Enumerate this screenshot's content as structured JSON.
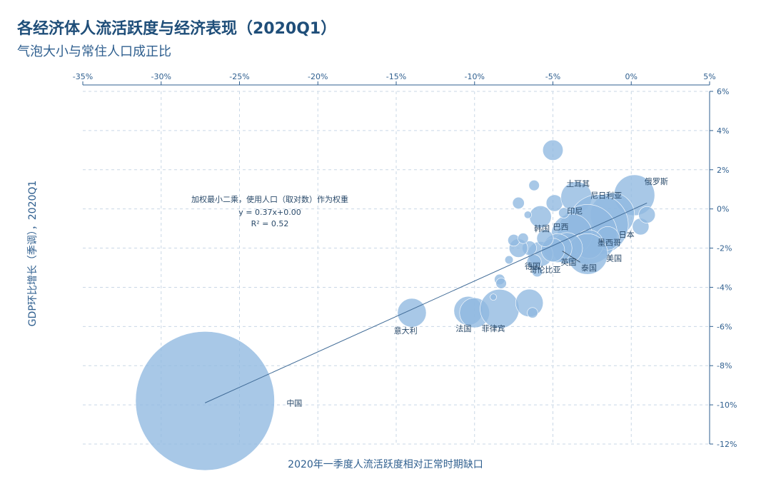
{
  "title": "各经济体人流活跃度与经济表现（2020Q1）",
  "subtitle": "气泡大小与常住人口成正比",
  "chart_data": {
    "type": "scatter",
    "xlabel": "2020年一季度人流活跃度相对正常时期缺口",
    "ylabel": "GDP环比增长（季调），2020Q1",
    "x_ticks": [
      "-35%",
      "-30%",
      "-25%",
      "-20%",
      "-15%",
      "-10%",
      "-5%",
      "0%",
      "5%"
    ],
    "y_ticks": [
      "6%",
      "4%",
      "2%",
      "0%",
      "-2%",
      "-4%",
      "-6%",
      "-8%",
      "-10%",
      "-12%"
    ],
    "xlim": [
      -35,
      5
    ],
    "ylim": [
      -12,
      6
    ],
    "grid": true,
    "regression": {
      "note": "加权最小二乘，使用人口（取对数）作为权重",
      "equation": "y = 0.37x+0.00",
      "r2": "R² = 0.52",
      "from": [
        -27.2,
        -9.9
      ],
      "to": [
        1.0,
        0.3
      ]
    },
    "color": "#8fb8e0",
    "points": [
      {
        "x": -27.2,
        "y": -9.8,
        "size": 1400,
        "label": "中国",
        "lx": -21.5,
        "ly": -9.9
      },
      {
        "x": -14.0,
        "y": -5.3,
        "size": 60,
        "label": "意大利",
        "lx": -14.4,
        "ly": -6.2
      },
      {
        "x": -10.4,
        "y": -5.2,
        "size": 60,
        "label": "",
        "lx": null,
        "ly": null
      },
      {
        "x": -10.0,
        "y": -5.3,
        "size": 65,
        "label": "法国",
        "lx": -10.7,
        "ly": -6.1
      },
      {
        "x": -8.4,
        "y": -5.1,
        "size": 110,
        "label": "菲律宾",
        "lx": -8.8,
        "ly": -6.1
      },
      {
        "x": -6.5,
        "y": -4.8,
        "size": 55,
        "label": "",
        "lx": null,
        "ly": null
      },
      {
        "x": -6.3,
        "y": -5.3,
        "size": 8,
        "label": "",
        "lx": null,
        "ly": null
      },
      {
        "x": -8.4,
        "y": -3.6,
        "size": 8,
        "label": "",
        "lx": null,
        "ly": null
      },
      {
        "x": -8.3,
        "y": -3.8,
        "size": 8,
        "label": "",
        "lx": null,
        "ly": null
      },
      {
        "x": -8.8,
        "y": -4.5,
        "size": 3,
        "label": "",
        "lx": null,
        "ly": null
      },
      {
        "x": -5.0,
        "y": 3.0,
        "size": 30,
        "label": "",
        "lx": null,
        "ly": null
      },
      {
        "x": -6.2,
        "y": 1.2,
        "size": 8,
        "label": "",
        "lx": null,
        "ly": null
      },
      {
        "x": -7.2,
        "y": 0.3,
        "size": 10,
        "label": "",
        "lx": null,
        "ly": null
      },
      {
        "x": -4.9,
        "y": 0.3,
        "size": 20,
        "label": "",
        "lx": null,
        "ly": null
      },
      {
        "x": -3.5,
        "y": 0.6,
        "size": 70,
        "label": "土耳其",
        "lx": -3.4,
        "ly": 1.3
      },
      {
        "x": 0.2,
        "y": 0.7,
        "size": 120,
        "label": "俄罗斯",
        "lx": 1.6,
        "ly": 1.4
      },
      {
        "x": -1.2,
        "y": -0.3,
        "size": 140,
        "label": "尼日利亚",
        "lx": -1.6,
        "ly": 0.7
      },
      {
        "x": -2.1,
        "y": -0.8,
        "size": 260,
        "label": "",
        "lx": null,
        "ly": null
      },
      {
        "x": -2.8,
        "y": -1.3,
        "size": 260,
        "label": "印尼",
        "lx": -3.6,
        "ly": -0.1
      },
      {
        "x": -3.8,
        "y": -1.3,
        "size": 120,
        "label": "巴西",
        "lx": -4.5,
        "ly": -0.9
      },
      {
        "x": -5.8,
        "y": -0.4,
        "size": 35,
        "label": "韩国",
        "lx": -5.7,
        "ly": -1.0
      },
      {
        "x": 0.6,
        "y": -0.9,
        "size": 20,
        "label": "",
        "lx": null,
        "ly": null
      },
      {
        "x": 1.0,
        "y": -0.3,
        "size": 20,
        "label": "",
        "lx": null,
        "ly": null
      },
      {
        "x": -1.5,
        "y": -1.5,
        "size": 40,
        "label": "日本",
        "lx": -0.3,
        "ly": -1.3
      },
      {
        "x": -2.7,
        "y": -1.8,
        "size": 60,
        "label": "墨西哥",
        "lx": -1.4,
        "ly": -1.7
      },
      {
        "x": -2.8,
        "y": -2.3,
        "size": 120,
        "label": "美国",
        "lx": -1.1,
        "ly": -2.5
      },
      {
        "x": -4.1,
        "y": -2.0,
        "size": 70,
        "label": "英国",
        "lx": -4.0,
        "ly": -2.7
      },
      {
        "x": -4.7,
        "y": -2.0,
        "size": 60,
        "label": "泰国",
        "lx": -2.7,
        "ly": -3.0
      },
      {
        "x": -5.8,
        "y": -2.3,
        "size": 45,
        "label": "德国",
        "lx": -6.3,
        "ly": -2.9
      },
      {
        "x": -5.0,
        "y": -2.1,
        "size": 40,
        "label": "哥伦比亚",
        "lx": -5.5,
        "ly": -3.1
      },
      {
        "x": -6.5,
        "y": -2.0,
        "size": 15,
        "label": "",
        "lx": null,
        "ly": null
      },
      {
        "x": -7.2,
        "y": -2.0,
        "size": 25,
        "label": "",
        "lx": null,
        "ly": null
      },
      {
        "x": -7.5,
        "y": -1.6,
        "size": 10,
        "label": "",
        "lx": null,
        "ly": null
      },
      {
        "x": -6.9,
        "y": -1.5,
        "size": 8,
        "label": "",
        "lx": null,
        "ly": null
      },
      {
        "x": -6.2,
        "y": -2.7,
        "size": 15,
        "label": "",
        "lx": null,
        "ly": null
      },
      {
        "x": -6.0,
        "y": -3.2,
        "size": 8,
        "label": "",
        "lx": null,
        "ly": null
      },
      {
        "x": -5.5,
        "y": -1.5,
        "size": 20,
        "label": "",
        "lx": null,
        "ly": null
      },
      {
        "x": -4.3,
        "y": -0.2,
        "size": 8,
        "label": "",
        "lx": null,
        "ly": null
      },
      {
        "x": -7.8,
        "y": -2.6,
        "size": 5,
        "label": "",
        "lx": null,
        "ly": null
      },
      {
        "x": -6.6,
        "y": -0.3,
        "size": 4,
        "label": "",
        "lx": null,
        "ly": null
      }
    ]
  }
}
